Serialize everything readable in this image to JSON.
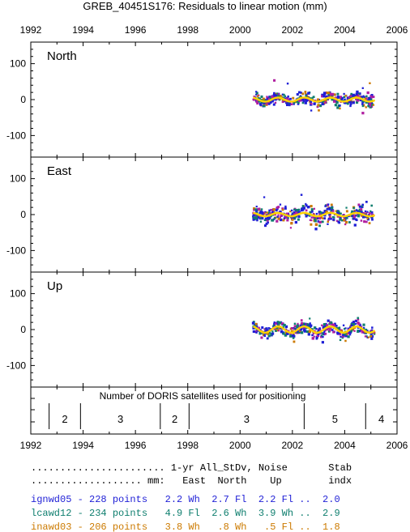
{
  "chart_data": {
    "type": "scatter",
    "title": "GREB_40451S176: Residuals to linear motion (mm)",
    "x_ticks": [
      "1992",
      "1994",
      "1996",
      "1998",
      "2000",
      "2002",
      "2004",
      "2006"
    ],
    "xlim": [
      1992,
      2006
    ],
    "ylim": [
      -160,
      160
    ],
    "y_ticks": [
      "100",
      "0",
      "-100"
    ],
    "colors": {
      "ignwd05": "#1f1fd6",
      "lcawd12": "#0e7e6e",
      "inawd03": "#cc7a00",
      "extra": "#b01fa0",
      "smooth": "#ffd200"
    },
    "panels": [
      {
        "label": "North",
        "data_start": 2000.5,
        "data_end": 2005.15,
        "noise": 13,
        "amp": 7
      },
      {
        "label": "East",
        "data_start": 2000.5,
        "data_end": 2005.15,
        "noise": 17,
        "amp": 6
      },
      {
        "label": "Up",
        "data_start": 2000.5,
        "data_end": 2005.15,
        "noise": 13,
        "amp": 11
      }
    ],
    "satellites": {
      "label": "Number of DORIS satellites used for positioning",
      "boundaries": [
        1992.7,
        1993.9,
        1996.95,
        1998.05,
        2002.45,
        2004.8
      ],
      "segments": [
        {
          "from": 1992.7,
          "to": 1993.9,
          "count": "2"
        },
        {
          "from": 1993.9,
          "to": 1996.95,
          "count": "3"
        },
        {
          "from": 1996.95,
          "to": 1998.05,
          "count": "2"
        },
        {
          "from": 1998.05,
          "to": 2002.45,
          "count": "3"
        },
        {
          "from": 2002.45,
          "to": 2004.8,
          "count": "5"
        },
        {
          "from": 2004.8,
          "to": 2006.0,
          "count": "4"
        }
      ]
    }
  },
  "table": {
    "header1": "....................... 1-yr All_StDv, Noise       Stab",
    "header2": "................... mm:   East  North    Up        indx",
    "rows": [
      {
        "text": "ignwd05 - 228 points   2.2 Wh  2.7 Fl  2.2 Fl ..  2.0",
        "color": "#1f1fd6"
      },
      {
        "text": "lcawd12 - 234 points   4.9 Fl  2.6 Wh  3.9 Wh ..  2.9",
        "color": "#0e7e6e"
      },
      {
        "text": "inawd03 - 206 points   3.8 Wh   .8 Wh   .5 Fl ..  1.8",
        "color": "#cc7a00"
      }
    ]
  }
}
